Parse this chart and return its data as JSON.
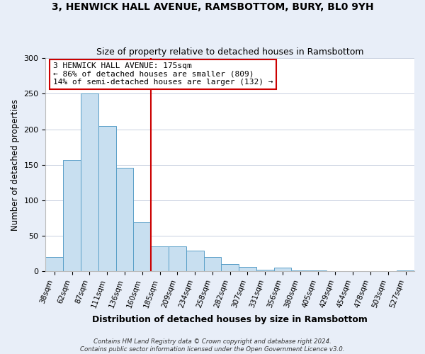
{
  "title": "3, HENWICK HALL AVENUE, RAMSBOTTOM, BURY, BL0 9YH",
  "subtitle": "Size of property relative to detached houses in Ramsbottom",
  "xlabel": "Distribution of detached houses by size in Ramsbottom",
  "ylabel": "Number of detached properties",
  "bar_labels": [
    "38sqm",
    "62sqm",
    "87sqm",
    "111sqm",
    "136sqm",
    "160sqm",
    "185sqm",
    "209sqm",
    "234sqm",
    "258sqm",
    "282sqm",
    "307sqm",
    "331sqm",
    "356sqm",
    "380sqm",
    "405sqm",
    "429sqm",
    "454sqm",
    "478sqm",
    "503sqm",
    "527sqm"
  ],
  "bar_values": [
    20,
    157,
    250,
    204,
    146,
    69,
    35,
    35,
    29,
    20,
    10,
    6,
    2,
    5,
    1,
    1,
    0,
    0,
    0,
    0,
    1
  ],
  "bar_color": "#c8dff0",
  "bar_edge_color": "#5a9fc8",
  "vline_x_index": 6,
  "vline_color": "#cc0000",
  "ylim": [
    0,
    300
  ],
  "yticks": [
    0,
    50,
    100,
    150,
    200,
    250,
    300
  ],
  "annotation_line1": "3 HENWICK HALL AVENUE: 175sqm",
  "annotation_line2": "← 86% of detached houses are smaller (809)",
  "annotation_line3": "14% of semi-detached houses are larger (132) →",
  "annotation_box_color": "#ffffff",
  "annotation_box_edge_color": "#cc0000",
  "footer_line1": "Contains HM Land Registry data © Crown copyright and database right 2024.",
  "footer_line2": "Contains public sector information licensed under the Open Government Licence v3.0.",
  "background_color": "#e8eef8",
  "plot_background_color": "#ffffff",
  "grid_color": "#c8d0e0"
}
